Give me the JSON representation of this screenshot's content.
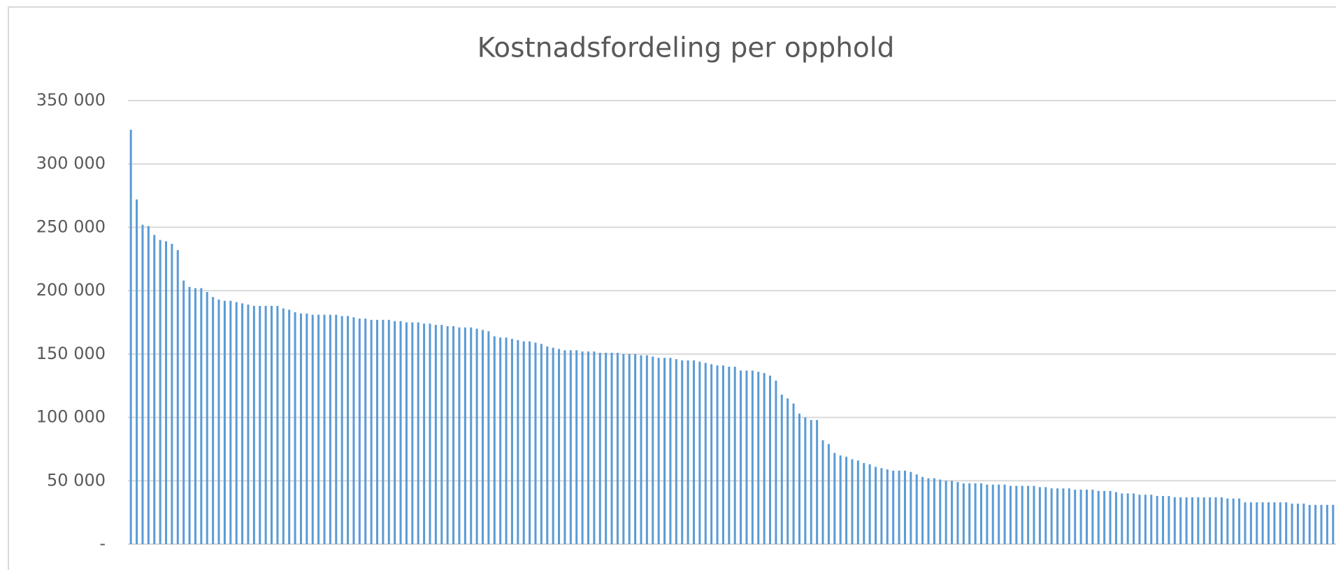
{
  "chart_data": {
    "type": "bar",
    "title": "Kostnadsfordeling per opphold",
    "color": "#5b9bd5",
    "grid": true,
    "ylim": [
      0,
      350000
    ],
    "yticks": [
      {
        "value": 0,
        "label": "-"
      },
      {
        "value": 50000,
        "label": "50 000"
      },
      {
        "value": 100000,
        "label": "100 000"
      },
      {
        "value": 150000,
        "label": "150 000"
      },
      {
        "value": 200000,
        "label": "200 000"
      },
      {
        "value": 250000,
        "label": "250 000"
      },
      {
        "value": 300000,
        "label": "300 000"
      },
      {
        "value": 350000,
        "label": "350 000"
      }
    ],
    "values": [
      327000,
      272000,
      252000,
      251000,
      244000,
      240000,
      239000,
      237000,
      232000,
      208000,
      203000,
      202000,
      202000,
      199000,
      195000,
      193000,
      192000,
      192000,
      191000,
      190000,
      189000,
      188000,
      188000,
      188000,
      188000,
      188000,
      186000,
      185000,
      183000,
      182000,
      182000,
      181000,
      181000,
      181000,
      181000,
      181000,
      180000,
      180000,
      179000,
      178000,
      178000,
      177000,
      177000,
      177000,
      177000,
      176000,
      176000,
      175000,
      175000,
      175000,
      174000,
      174000,
      173000,
      173000,
      172000,
      172000,
      171000,
      171000,
      171000,
      170000,
      169000,
      168000,
      164000,
      163000,
      163000,
      162000,
      161000,
      160000,
      160000,
      159000,
      158000,
      156000,
      155000,
      154000,
      153000,
      153000,
      153000,
      152000,
      152000,
      152000,
      151000,
      151000,
      151000,
      151000,
      150000,
      150000,
      150000,
      149000,
      149000,
      148000,
      147000,
      147000,
      147000,
      146000,
      145000,
      145000,
      145000,
      144000,
      143000,
      142000,
      141000,
      141000,
      140000,
      140000,
      137000,
      137000,
      137000,
      136000,
      135000,
      133000,
      129000,
      118000,
      115000,
      111000,
      103000,
      100000,
      98000,
      98000,
      82000,
      79000,
      72000,
      70000,
      69000,
      67000,
      66000,
      64000,
      63000,
      61000,
      60000,
      59000,
      58000,
      58000,
      58000,
      57000,
      55000,
      53000,
      52000,
      52000,
      51000,
      50000,
      50000,
      49000,
      48000,
      48000,
      48000,
      48000,
      47000,
      47000,
      47000,
      47000,
      46000,
      46000,
      46000,
      46000,
      46000,
      45000,
      45000,
      44000,
      44000,
      44000,
      44000,
      43000,
      43000,
      43000,
      43000,
      42000,
      42000,
      42000,
      41000,
      40000,
      40000,
      40000,
      39000,
      39000,
      39000,
      38000,
      38000,
      38000,
      37000,
      37000,
      37000,
      37000,
      37000,
      37000,
      37000,
      37000,
      37000,
      36000,
      36000,
      36000,
      33000,
      33000,
      33000,
      33000,
      33000,
      33000,
      33000,
      33000,
      32000,
      32000,
      32000,
      31000,
      31000,
      31000,
      31000,
      31000
    ]
  }
}
